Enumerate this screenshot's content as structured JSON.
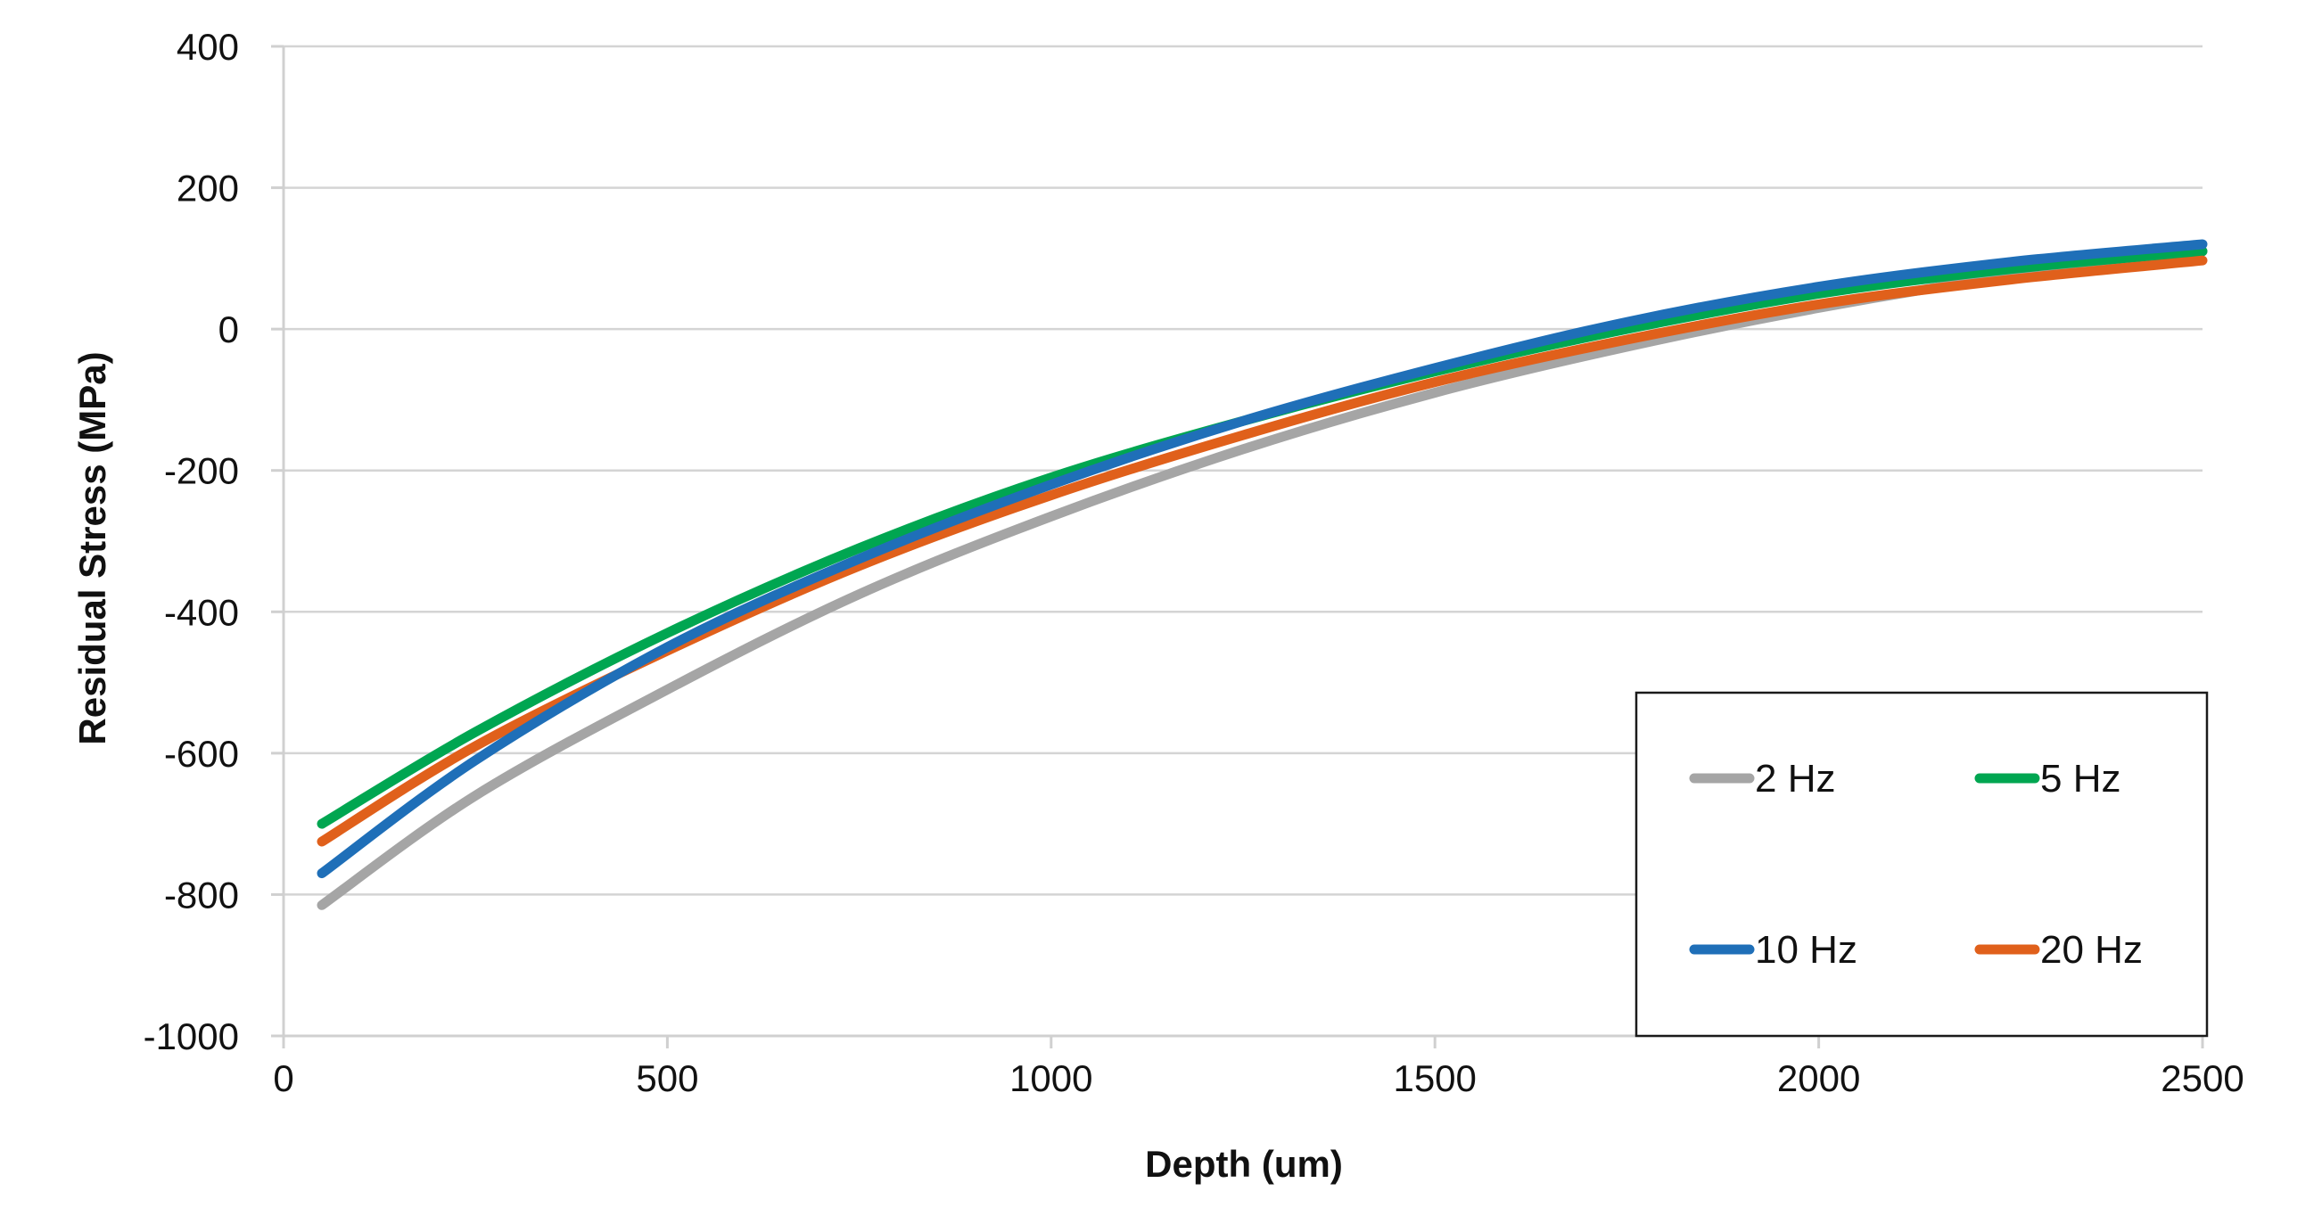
{
  "chart_data": {
    "type": "line",
    "title": "",
    "xlabel": "Depth (um)",
    "ylabel": "Residual Stress (MPa)",
    "xlim": [
      0,
      2500
    ],
    "ylim": [
      -1000,
      400
    ],
    "xticks": [
      0,
      500,
      1000,
      1500,
      2000,
      2500
    ],
    "yticks": [
      -1000,
      -800,
      -600,
      -400,
      -200,
      0,
      200,
      400
    ],
    "xtick_labels": [
      "0",
      "500",
      "1000",
      "1500",
      "2000",
      "2500"
    ],
    "ytick_labels": [
      "-1000",
      "-800",
      "-600",
      "-400",
      "-200",
      "0",
      "200",
      "400"
    ],
    "grid": "horizontal",
    "legend_position": "bottom-right",
    "x": [
      50,
      250,
      500,
      750,
      1000,
      1250,
      1500,
      1750,
      2000,
      2250,
      2500
    ],
    "series": [
      {
        "name": "2 Hz",
        "color": "#a5a5a5",
        "values": [
          -815,
          -660,
          -510,
          -375,
          -265,
          -170,
          -90,
          -25,
          30,
          75,
          110
        ]
      },
      {
        "name": "5 Hz",
        "color": "#00a651",
        "values": [
          -700,
          -570,
          -430,
          -310,
          -210,
          -130,
          -60,
          0,
          50,
          85,
          110
        ]
      },
      {
        "name": "10 Hz",
        "color": "#1f6fb8",
        "values": [
          -770,
          -610,
          -450,
          -325,
          -220,
          -130,
          -55,
          10,
          60,
          95,
          120
        ]
      },
      {
        "name": "20 Hz",
        "color": "#e0601b",
        "values": [
          -725,
          -590,
          -455,
          -335,
          -235,
          -150,
          -75,
          -15,
          35,
          70,
          97
        ]
      }
    ]
  }
}
